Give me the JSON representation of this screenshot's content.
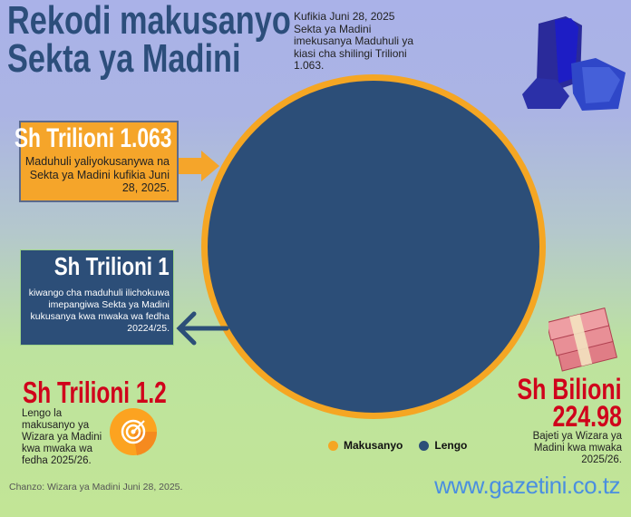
{
  "header": {
    "title_line1": "Rekodi makusanyo",
    "title_line2": "Sekta ya Madini",
    "intro": "Kufikia Juni 28, 2025 Sekta ya Madini imekusanya Maduhuli ya kiasi cha shilingi Trilioni 1.063."
  },
  "collected": {
    "amount": "Sh Trilioni 1.063",
    "description": "Maduhuli yaliyokusanywa na Sekta ya Madini kufikia Juni 28, 2025."
  },
  "target": {
    "amount": "Sh Trilioni 1",
    "description": "kiwango cha maduhuli ilichokuwa imepangiwa Sekta ya Madini kukusanya kwa mwaka wa fedha 20224/25."
  },
  "next_target": {
    "amount": "Sh Trilioni 1.2",
    "description": "Lengo la makusanyo ya Wizara ya Madini kwa mwaka wa fedha 2025/26.",
    "icon": "target-icon"
  },
  "budget": {
    "amount_line1": "Sh Bilioni",
    "amount_line2": "224.98",
    "description": "Bajeti ya Wizara ya Madini kwa mwaka 2025/26.",
    "icon": "money-stack-icon"
  },
  "source": "Chanzo: Wizara ya Madini Juni 28, 2025.",
  "website": "www.gazetini.co.tz",
  "colors": {
    "makusanyo": "#f5a623",
    "lengo": "#2c4e78",
    "highlight_red": "#d0021b"
  },
  "chart_data": {
    "type": "pie",
    "categories": [
      "Makusanyo",
      "Lengo"
    ],
    "values": [
      1.063,
      1
    ],
    "unit": "Sh Trilioni",
    "legend": [
      {
        "label": "Makusanyo",
        "color": "#f5a623"
      },
      {
        "label": "Lengo",
        "color": "#2c4e78"
      }
    ],
    "legend_placement": "bottom"
  }
}
